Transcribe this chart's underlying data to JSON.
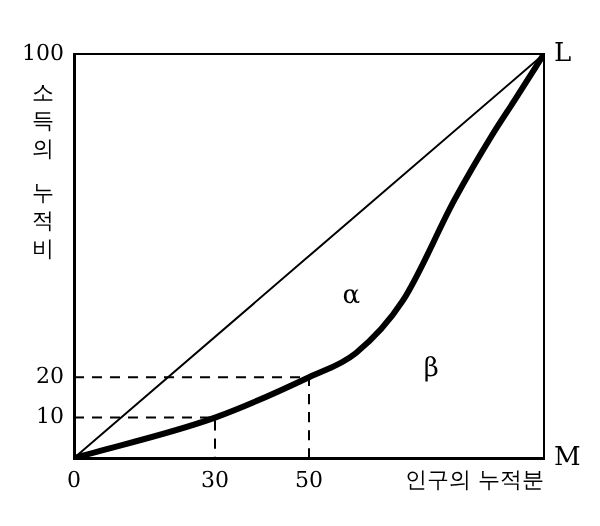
{
  "chart_data": {
    "type": "line",
    "xlabel": "인구의 누적분",
    "ylabel": "소득의 누적비",
    "xlim": [
      0,
      100
    ],
    "ylim": [
      0,
      100
    ],
    "xticks": [
      0,
      30,
      50
    ],
    "yticks": [
      10,
      20,
      100
    ],
    "grid": false,
    "legend": false,
    "marker": "none",
    "series": [
      {
        "color": "#000000",
        "x": [
          0,
          100
        ],
        "values": [
          0,
          100
        ]
      },
      {
        "color": "#000000",
        "x": [
          0,
          30,
          50,
          60,
          70,
          81,
          89,
          94,
          100
        ],
        "values": [
          0,
          10,
          20,
          26,
          39,
          64,
          80,
          89,
          100
        ]
      },
      {
        "color": "#000000",
        "line_style": "dashed",
        "x": [
          0,
          30,
          30
        ],
        "values": [
          10,
          10,
          0
        ]
      },
      {
        "color": "#000000",
        "line_style": "dashed",
        "x": [
          0,
          50,
          50
        ],
        "values": [
          20,
          20,
          0
        ]
      }
    ],
    "annotations": [
      {
        "text": "L",
        "x": 100,
        "y": 100
      },
      "M",
      "α",
      "β"
    ]
  }
}
